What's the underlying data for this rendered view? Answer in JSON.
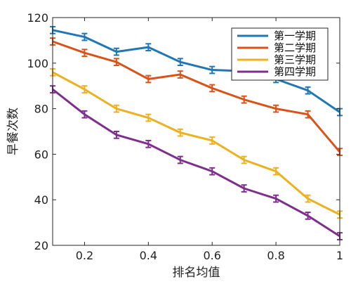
{
  "chart_data": {
    "type": "line",
    "xlabel": "排名均值",
    "ylabel": "早餐次数",
    "xlim": [
      0.1,
      1.0
    ],
    "ylim": [
      20,
      120
    ],
    "xticks": [
      0.2,
      0.4,
      0.6,
      0.8,
      1
    ],
    "xtick_labels": [
      "0.2",
      "0.4",
      "0.6",
      "0.8",
      "1"
    ],
    "yticks": [
      20,
      40,
      60,
      80,
      100,
      120
    ],
    "ytick_labels": [
      "20",
      "40",
      "60",
      "80",
      "100",
      "120"
    ],
    "grid": false,
    "legend_position": "top-right",
    "error_bars": true,
    "x": [
      0.1,
      0.2,
      0.3,
      0.4,
      0.5,
      0.6,
      0.7,
      0.8,
      0.9,
      1.0
    ],
    "series": [
      {
        "name": "第一学期",
        "color": "#1f77b4",
        "values": [
          114.5,
          111.5,
          105.0,
          107.0,
          100.5,
          97.0,
          96.5,
          93.0,
          88.0,
          78.5
        ],
        "errors": [
          1.5,
          1.5,
          1.5,
          1.5,
          1.5,
          1.5,
          1.5,
          1.5,
          1.5,
          1.5
        ]
      },
      {
        "name": "第二学期",
        "color": "#d95319",
        "values": [
          109.5,
          104.5,
          100.5,
          93.0,
          95.0,
          89.0,
          84.0,
          80.0,
          77.5,
          61.0
        ],
        "errors": [
          1.5,
          1.5,
          1.5,
          1.5,
          1.5,
          1.5,
          1.5,
          1.5,
          1.5,
          1.5
        ]
      },
      {
        "name": "第三学期",
        "color": "#edb120",
        "values": [
          96.0,
          88.5,
          80.0,
          76.0,
          69.5,
          66.0,
          57.5,
          52.5,
          40.5,
          33.5
        ],
        "errors": [
          1.5,
          1.5,
          1.5,
          1.5,
          1.5,
          1.5,
          1.5,
          1.5,
          1.5,
          1.5
        ]
      },
      {
        "name": "第四学期",
        "color": "#7e2f8e",
        "values": [
          88.5,
          77.5,
          68.5,
          64.5,
          57.5,
          52.5,
          45.0,
          40.5,
          33.0,
          24.0
        ],
        "errors": [
          1.5,
          1.5,
          1.5,
          1.5,
          1.5,
          1.5,
          1.5,
          1.5,
          1.5,
          1.5
        ]
      }
    ]
  }
}
